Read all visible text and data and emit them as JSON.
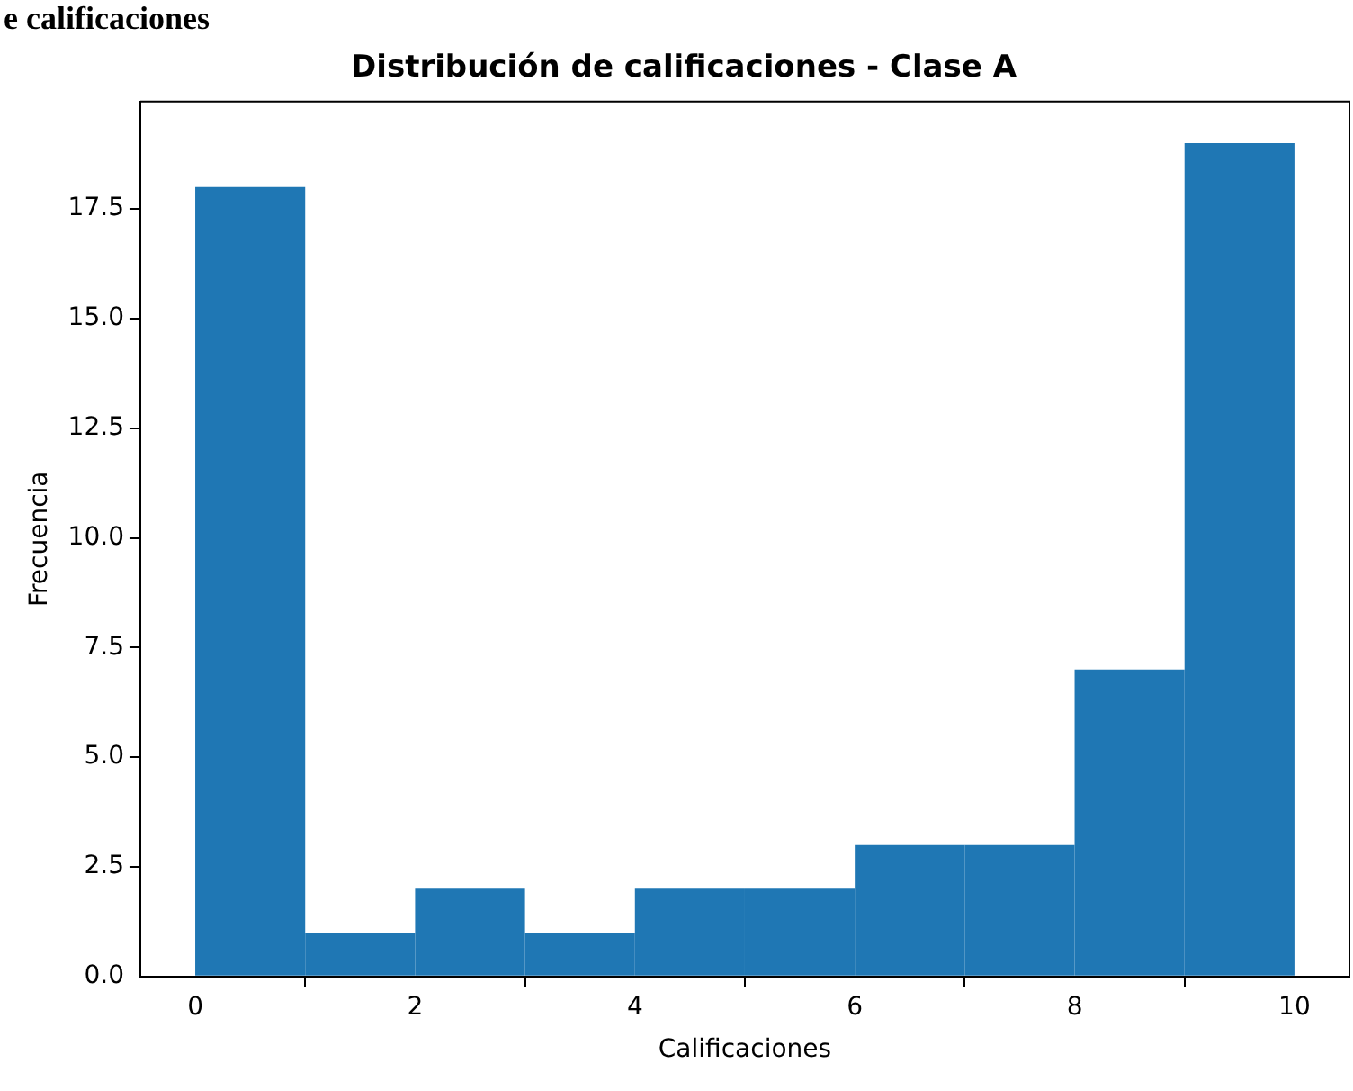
{
  "chart_data": {
    "type": "histogram",
    "title": "Distribución de calificaciones - Clase A",
    "xlabel": "Calificaciones",
    "ylabel": "Frecuencia",
    "annotations": [
      "e calificaciones"
    ],
    "bins": [
      0,
      1,
      2,
      3,
      4,
      5,
      6,
      7,
      8,
      9,
      10
    ],
    "values": [
      18,
      1,
      2,
      1,
      2,
      2,
      3,
      3,
      7,
      19
    ],
    "color": "#1f77b4",
    "xlim": [
      -0.5,
      10.5
    ],
    "xticks": [
      0,
      2,
      4,
      6,
      8,
      10
    ],
    "ylim": [
      0,
      19.95
    ],
    "yticks": [
      {
        "value": 0,
        "label": "0.0"
      },
      {
        "value": 2.5,
        "label": "2.5"
      },
      {
        "value": 5,
        "label": "5.0"
      },
      {
        "value": 7.5,
        "label": "7.5"
      },
      {
        "value": 10,
        "label": "10.0"
      },
      {
        "value": 12.5,
        "label": "12.5"
      },
      {
        "value": 15,
        "label": "15.0"
      },
      {
        "value": 17.5,
        "label": "17.5"
      }
    ],
    "grid": false,
    "legend": false
  }
}
